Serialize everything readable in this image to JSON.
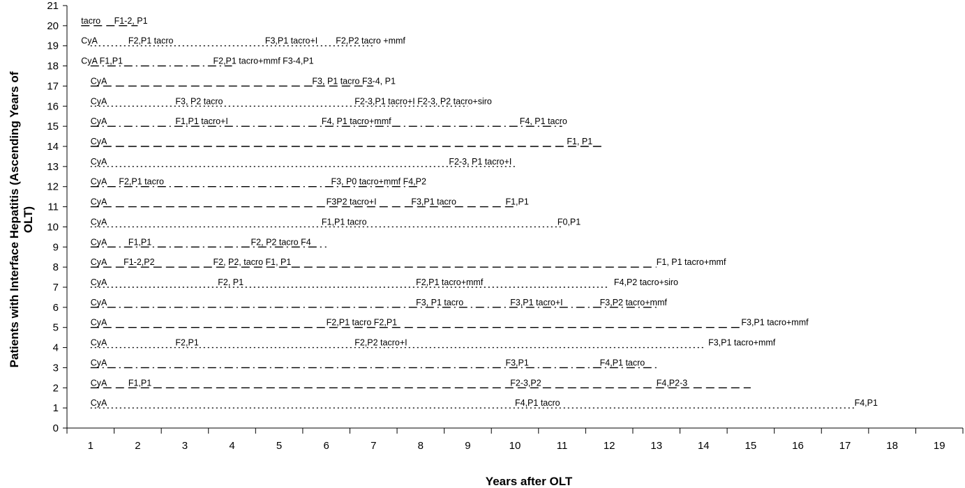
{
  "chart_data": {
    "type": "timeline",
    "xlabel": "Years after OLT",
    "ylabel": "Patients with Interface Hepatitis (Ascending Years of OLT)",
    "xlim": [
      0.5,
      19.5
    ],
    "ylim": [
      0,
      21
    ],
    "x_ticks": [
      "1",
      "2",
      "3",
      "4",
      "5",
      "6",
      "7",
      "8",
      "9",
      "10",
      "11",
      "12",
      "13",
      "14",
      "15",
      "16",
      "17",
      "18",
      "19"
    ],
    "y_ticks": [
      "0",
      "1",
      "2",
      "3",
      "4",
      "5",
      "6",
      "7",
      "8",
      "9",
      "10",
      "11",
      "12",
      "13",
      "14",
      "15",
      "16",
      "17",
      "18",
      "19",
      "20",
      "21"
    ],
    "grid": false,
    "legend": "none",
    "series": [
      {
        "y": 1,
        "start": 1.0,
        "end": 17.2,
        "style": "dot",
        "annotations": [
          {
            "x": 1.0,
            "text": "CyA"
          },
          {
            "x": 10.0,
            "text": "F4,P1 tacro"
          },
          {
            "x": 17.2,
            "text": "F4,P1"
          }
        ]
      },
      {
        "y": 2,
        "start": 1.0,
        "end": 15.0,
        "style": "dash",
        "annotations": [
          {
            "x": 1.0,
            "text": "CyA"
          },
          {
            "x": 1.8,
            "text": "F1,P1"
          },
          {
            "x": 9.9,
            "text": "F2-3,P2"
          },
          {
            "x": 13.0,
            "text": "F4,P2-3"
          }
        ]
      },
      {
        "y": 3,
        "start": 1.0,
        "end": 13.0,
        "style": "dashdot",
        "annotations": [
          {
            "x": 1.0,
            "text": "CyA"
          },
          {
            "x": 9.8,
            "text": "F3,P1"
          },
          {
            "x": 11.8,
            "text": "F4,P1 tacro"
          }
        ]
      },
      {
        "y": 4,
        "start": 1.0,
        "end": 14.0,
        "style": "dot",
        "annotations": [
          {
            "x": 1.0,
            "text": "CyA"
          },
          {
            "x": 2.8,
            "text": "F2,P1"
          },
          {
            "x": 6.6,
            "text": "F2,P2 tacro+I"
          },
          {
            "x": 14.1,
            "text": "F3,P1 tacro+mmf"
          }
        ]
      },
      {
        "y": 5,
        "start": 1.0,
        "end": 14.8,
        "style": "dash",
        "annotations": [
          {
            "x": 1.0,
            "text": "CyA"
          },
          {
            "x": 6.0,
            "text": "F2,P1 tacro F2,P1"
          },
          {
            "x": 14.8,
            "text": "F3,P1 tacro+mmf"
          }
        ]
      },
      {
        "y": 6,
        "start": 1.0,
        "end": 13.0,
        "style": "dashdot",
        "annotations": [
          {
            "x": 1.0,
            "text": "CyA"
          },
          {
            "x": 7.9,
            "text": "F3, P1 tacro"
          },
          {
            "x": 9.9,
            "text": "F3,P1 tacro+I"
          },
          {
            "x": 11.8,
            "text": "F3,P2 tacro+mmf"
          }
        ]
      },
      {
        "y": 7,
        "start": 1.0,
        "end": 12.0,
        "style": "dot",
        "annotations": [
          {
            "x": 1.0,
            "text": "CyA"
          },
          {
            "x": 3.7,
            "text": "F2, P1"
          },
          {
            "x": 7.9,
            "text": "F2,P1 tacro+mmf"
          },
          {
            "x": 12.1,
            "text": "F4,P2 tacro+siro"
          }
        ]
      },
      {
        "y": 8,
        "start": 1.0,
        "end": 13.0,
        "style": "dash",
        "annotations": [
          {
            "x": 1.0,
            "text": "CyA"
          },
          {
            "x": 1.7,
            "text": "F1-2,P2"
          },
          {
            "x": 3.6,
            "text": "F2, P2, tacro F1, P1"
          },
          {
            "x": 13.0,
            "text": "F1, P1 tacro+mmf"
          }
        ]
      },
      {
        "y": 9,
        "start": 1.0,
        "end": 6.0,
        "style": "dashdot",
        "annotations": [
          {
            "x": 1.0,
            "text": "CyA"
          },
          {
            "x": 1.8,
            "text": "F1,P1"
          },
          {
            "x": 4.4,
            "text": "F2, P2 tacro F4"
          }
        ]
      },
      {
        "y": 10,
        "start": 1.0,
        "end": 11.0,
        "style": "dot",
        "annotations": [
          {
            "x": 1.0,
            "text": "CyA"
          },
          {
            "x": 5.9,
            "text": "F1,P1 tacro"
          },
          {
            "x": 10.9,
            "text": "F0,P1"
          }
        ]
      },
      {
        "y": 11,
        "start": 1.0,
        "end": 10.0,
        "style": "dash",
        "annotations": [
          {
            "x": 1.0,
            "text": "CyA"
          },
          {
            "x": 6.0,
            "text": "F3P2 tacro+I"
          },
          {
            "x": 7.8,
            "text": "F3,P1 tacro"
          },
          {
            "x": 9.8,
            "text": "F1,P1"
          }
        ]
      },
      {
        "y": 12,
        "start": 1.0,
        "end": 8.0,
        "style": "dashdot",
        "annotations": [
          {
            "x": 1.0,
            "text": "CyA"
          },
          {
            "x": 1.6,
            "text": "F2,P1 tacro"
          },
          {
            "x": 6.1,
            "text": "F3, P0 tacro+mmf F4,P2"
          }
        ]
      },
      {
        "y": 13,
        "start": 1.0,
        "end": 10.0,
        "style": "dot",
        "annotations": [
          {
            "x": 1.0,
            "text": "CyA"
          },
          {
            "x": 8.6,
            "text": "F2-3, P1 tacro+I"
          }
        ]
      },
      {
        "y": 14,
        "start": 1.0,
        "end": 11.9,
        "style": "dash",
        "annotations": [
          {
            "x": 1.0,
            "text": "CyA"
          },
          {
            "x": 11.1,
            "text": "F1, P1"
          }
        ]
      },
      {
        "y": 15,
        "start": 1.0,
        "end": 11.0,
        "style": "dashdot",
        "annotations": [
          {
            "x": 1.0,
            "text": "CyA"
          },
          {
            "x": 2.8,
            "text": "F1,P1 tacro+I"
          },
          {
            "x": 5.9,
            "text": "F4, P1 tacro+mmf"
          },
          {
            "x": 10.1,
            "text": "F4, P1 tacro"
          }
        ]
      },
      {
        "y": 16,
        "start": 1.0,
        "end": 9.0,
        "style": "dot",
        "annotations": [
          {
            "x": 1.0,
            "text": "CyA"
          },
          {
            "x": 2.8,
            "text": "F3, P2 tacro"
          },
          {
            "x": 6.6,
            "text": "F2-3,P1 tacro+I F2-3, P2 tacro+siro"
          }
        ]
      },
      {
        "y": 17,
        "start": 1.0,
        "end": 7.0,
        "style": "dash",
        "annotations": [
          {
            "x": 1.0,
            "text": "CyA"
          },
          {
            "x": 5.7,
            "text": "F3, P1 tacro F3-4, P1"
          }
        ]
      },
      {
        "y": 18,
        "start": 1.0,
        "end": 4.0,
        "style": "dashdot",
        "annotations": [
          {
            "x": 0.8,
            "text": "CyA F1,P1"
          },
          {
            "x": 3.6,
            "text": "F2,P1 tacro+mmf F3-4,P1"
          }
        ]
      },
      {
        "y": 19,
        "start": 1.0,
        "end": 7.0,
        "style": "dot",
        "annotations": [
          {
            "x": 0.8,
            "text": "CyA"
          },
          {
            "x": 1.8,
            "text": "F2,P1 tacro"
          },
          {
            "x": 4.7,
            "text": "F3,P1 tacro+I"
          },
          {
            "x": 6.2,
            "text": "F2,P2 tacro +mmf"
          }
        ]
      },
      {
        "y": 20,
        "start": 0.8,
        "end": 2.0,
        "style": "dash",
        "annotations": [
          {
            "x": 0.8,
            "text": "tacro"
          },
          {
            "x": 1.5,
            "text": "F1-2, P1"
          }
        ]
      }
    ]
  }
}
